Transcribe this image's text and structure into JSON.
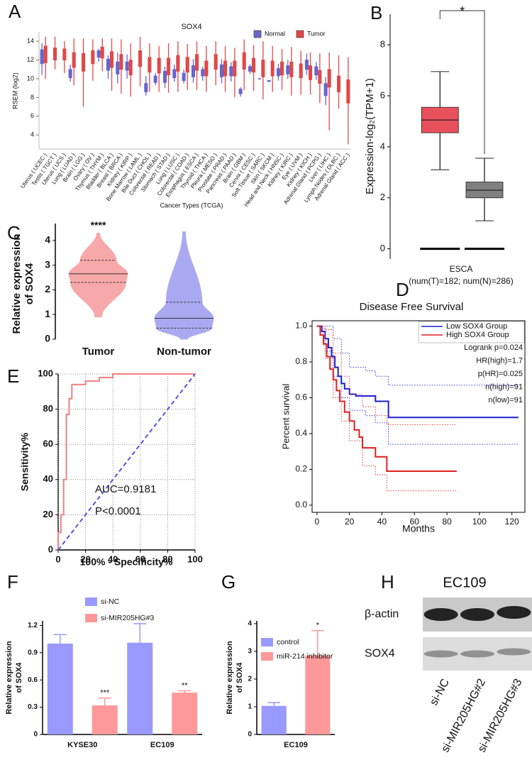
{
  "chart_data": [
    {
      "type": "box",
      "panel": "A",
      "title": "SOX4",
      "ylabel": "RSEM (log2)",
      "xlabel": "Cancer Types (TCGA)",
      "categories": [
        "Uterus ( UCEC )",
        "Testis ( TGCT )",
        "Uterus ( UCS )",
        "Lung ( LUAD )",
        "Brain ( LGG )",
        "Ovary ( OV )",
        "Thymus ( THYM )",
        "Bladder ( BLCA )",
        "Breast ( BRCA )",
        "Kidney ( KIRP )",
        "Bone Marrow ( LAML )",
        "Bile Duct ( CHOL )",
        "Colorectal ( READ )",
        "Stomach ( STAD )",
        "Lung ( LUSC )",
        "Colorectal ( COAD )",
        "Esophagus ( ESCA )",
        "Thyroid ( THCA )",
        "Pleura ( MESO )",
        "Prostate ( PRAD )",
        "Pancreas ( PAAD )",
        "Brain ( GBM )",
        "Cervix ( CESC )",
        "Soft Tissue ( SARC )",
        "Skin ( SKCM )",
        "Head and Neck ( HNSC )",
        "Kidney ( KIRC )",
        "Eye ( UVM )",
        "Kidney ( KICH )",
        "Adrenal Gland ( PCPG )",
        "Liver ( LIHC )",
        "Lymph Nodes ( DLBC )",
        "Adrenal Gland ( ACC )"
      ],
      "series": [
        {
          "name": "Normal",
          "color": "#6666cc",
          "values": [
            [
              10.4,
              11.6,
              12.3,
              13.1,
              13.8
            ],
            null,
            null,
            [
              9.7,
              10.1,
              10.5,
              11,
              11.5
            ],
            null,
            null,
            [
              11.8,
              12.3,
              12.6,
              13,
              13.2
            ],
            [
              10,
              10.9,
              11.5,
              12.1,
              12.5
            ],
            [
              9.5,
              10.5,
              11.2,
              11.8,
              12.8
            ],
            [
              10,
              10.9,
              11.4,
              11.8,
              12.6
            ],
            null,
            [
              8.2,
              8.6,
              9,
              9.5,
              10.3
            ],
            [
              9.3,
              9.6,
              10,
              10.3,
              10.6
            ],
            [
              9,
              9.6,
              10.2,
              10.8,
              11.3
            ],
            [
              9.7,
              10.1,
              10.5,
              11,
              11.5
            ],
            [
              9.5,
              9.8,
              10.2,
              10.6,
              11
            ],
            [
              9.6,
              10.2,
              10.8,
              11.4,
              12.1
            ],
            [
              9.8,
              10.3,
              10.7,
              11,
              11.3
            ],
            null,
            [
              9.5,
              10.2,
              10.9,
              11.5,
              12.1
            ],
            [
              9.7,
              10.3,
              10.8,
              11.3,
              11.8
            ],
            [
              8.1,
              8.4,
              8.6,
              8.9,
              9.1
            ],
            [
              10.5,
              10.8,
              11,
              11.3,
              11.5
            ],
            [
              9.9,
              10,
              10,
              10,
              10.1
            ],
            [
              9.7,
              9.7,
              9.8,
              9.8,
              9.8
            ],
            [
              9.8,
              10.3,
              10.7,
              11.1,
              11.6
            ],
            [
              10,
              10.5,
              11,
              11.4,
              12
            ],
            null,
            [
              10.4,
              11,
              11.6,
              12,
              12.7
            ],
            [
              9.9,
              10.4,
              10.8,
              11.3,
              11.8
            ],
            [
              7.2,
              8.2,
              8.8,
              9.5,
              10.2
            ],
            null,
            null
          ]
        },
        {
          "name": "Tumor",
          "color": "#e04848",
          "values": [
            [
              10,
              11.7,
              12.6,
              13.5,
              14.5
            ],
            [
              11,
              12,
              12.7,
              13.3,
              14.5
            ],
            [
              10.6,
              12,
              12.6,
              13.2,
              14
            ],
            [
              9.3,
              11.2,
              12,
              12.8,
              14.3
            ],
            [
              7,
              10.8,
              11.8,
              12.7,
              14.3
            ],
            [
              9.8,
              11.6,
              12.3,
              13,
              14.2
            ],
            [
              10.8,
              12.2,
              12.8,
              13.4,
              14.3
            ],
            [
              8.7,
              11.2,
              12,
              12.9,
              14.3
            ],
            [
              8.4,
              11,
              11.8,
              12.6,
              14.2
            ],
            [
              8.1,
              10.4,
              11.2,
              12,
              13.8
            ],
            [
              9.2,
              11.3,
              12.2,
              13,
              14.5
            ],
            [
              8.6,
              10.7,
              11.5,
              12.3,
              13.8
            ],
            [
              8.6,
              10.6,
              11.4,
              12.2,
              13.5
            ],
            [
              8.5,
              10.4,
              11.3,
              12.2,
              13.8
            ],
            [
              8.6,
              10.8,
              11.6,
              12.5,
              14
            ],
            [
              8.8,
              10.7,
              11.5,
              12.3,
              13.7
            ],
            [
              8.8,
              10.9,
              11.8,
              12.6,
              14
            ],
            [
              8.6,
              10.3,
              11.1,
              11.9,
              13.5
            ],
            [
              9.3,
              11,
              11.8,
              12.6,
              14
            ],
            [
              8.6,
              10.3,
              11.1,
              11.9,
              13.5
            ],
            [
              8,
              10.3,
              11.1,
              11.9,
              13.3
            ],
            [
              8.8,
              11,
              11.9,
              12.8,
              14.2
            ],
            [
              8.7,
              10.7,
              11.4,
              12.2,
              13.6
            ],
            [
              7.8,
              10.2,
              11.1,
              12,
              14
            ],
            [
              8.6,
              10.3,
              11.1,
              11.9,
              13.5
            ],
            [
              8.8,
              10.4,
              11.1,
              11.8,
              13.2
            ],
            [
              8.2,
              10.2,
              11,
              11.8,
              13.4
            ],
            [
              8.3,
              10.1,
              10.9,
              11.6,
              13
            ],
            [
              8.3,
              9.9,
              10.6,
              11.4,
              12.8
            ],
            [
              7.4,
              9.5,
              10.2,
              10.9,
              12.7
            ],
            [
              4.5,
              9.1,
              10.1,
              11,
              12.8
            ],
            [
              6.8,
              8.6,
              9.4,
              10.3,
              12.5
            ],
            [
              3,
              7.4,
              8.7,
              9.9,
              12.3
            ]
          ]
        }
      ],
      "ylim": [
        2.5,
        15
      ],
      "yticks": [
        4,
        6,
        8,
        10,
        12,
        14
      ],
      "legend": "upper right"
    },
    {
      "type": "box",
      "panel": "B",
      "ylabel": "Expression-log₂(TPM+1)",
      "xlabel": "ESCA",
      "subtitle": "(num(T)=182; num(N)=286)",
      "significance": "*",
      "series": [
        {
          "color": "#e8505b",
          "values": [
            3.1,
            4.55,
            5.05,
            5.55,
            6.95
          ]
        },
        {
          "color": "#808080",
          "values": [
            1.1,
            2.0,
            2.3,
            2.62,
            3.55
          ]
        }
      ],
      "ylim": [
        -0.4,
        9.2
      ],
      "yticks": [
        0,
        2,
        4,
        6,
        8
      ]
    },
    {
      "type": "violin",
      "panel": "C",
      "ylabel": [
        "Relative expression",
        "of SOX4"
      ],
      "categories": [
        "Tumor",
        "Non-tumor"
      ],
      "values": [
        [
          0.9,
          2.3,
          2.65,
          3.2,
          4.3
        ],
        [
          0,
          0.45,
          0.85,
          1.5,
          4.35
        ]
      ],
      "colors": [
        "#f7a8a8",
        "#a9a9f2"
      ],
      "significance": "****",
      "ylim": [
        0,
        4.4
      ],
      "yticks": [
        0,
        1,
        2,
        3,
        4
      ]
    },
    {
      "type": "line",
      "panel": "D",
      "step": true,
      "title": "Disease Free Survival",
      "xlabel": "Months",
      "ylabel": "Percent survival",
      "annotations": [
        "Logrank p=0.024",
        "HR(high)=1.7",
        "p(HR)=0.025",
        "n(high)=91",
        "n(low)=91"
      ],
      "series": [
        {
          "name": "Low SOX4 Group",
          "color": "#1f1fd0",
          "x": [
            0,
            3,
            5,
            7,
            9,
            11,
            13,
            15,
            17,
            20,
            24,
            28,
            32,
            36,
            44,
            124
          ],
          "y": [
            1,
            0.97,
            0.93,
            0.88,
            0.83,
            0.77,
            0.72,
            0.68,
            0.65,
            0.62,
            0.61,
            0.61,
            0.61,
            0.58,
            0.49,
            0.49
          ]
        },
        {
          "name": "High SOX4 Group",
          "color": "#e01f1f",
          "x": [
            0,
            2,
            4,
            6,
            8,
            10,
            12,
            14,
            17,
            20,
            23,
            26,
            28,
            33,
            36,
            43,
            86
          ],
          "y": [
            1,
            0.95,
            0.9,
            0.83,
            0.76,
            0.7,
            0.64,
            0.58,
            0.52,
            0.47,
            0.42,
            0.38,
            0.32,
            0.32,
            0.27,
            0.19,
            0.19
          ]
        },
        {
          "color": "#1f1fd0",
          "dash": true,
          "x": [
            0,
            5,
            10,
            15,
            20,
            30,
            36,
            44,
            124
          ],
          "y": [
            1,
            1,
            0.93,
            0.85,
            0.77,
            0.75,
            0.72,
            0.67,
            0.67
          ]
        },
        {
          "color": "#1f1fd0",
          "dash": true,
          "x": [
            0,
            5,
            10,
            15,
            20,
            30,
            36,
            44,
            124
          ],
          "y": [
            1,
            0.86,
            0.72,
            0.6,
            0.53,
            0.5,
            0.46,
            0.34,
            0.34
          ]
        },
        {
          "color": "#e01f1f",
          "dash": true,
          "x": [
            0,
            5,
            10,
            15,
            20,
            28,
            36,
            43,
            86
          ],
          "y": [
            1,
            0.98,
            0.85,
            0.72,
            0.62,
            0.55,
            0.5,
            0.45,
            0.45
          ]
        },
        {
          "color": "#e01f1f",
          "dash": true,
          "x": [
            0,
            5,
            10,
            15,
            20,
            28,
            36,
            43,
            86
          ],
          "y": [
            1,
            0.82,
            0.6,
            0.47,
            0.36,
            0.22,
            0.17,
            0.08,
            0.08
          ]
        }
      ],
      "xlim": [
        -3,
        128
      ],
      "xticks": [
        0,
        20,
        40,
        60,
        80,
        100,
        120
      ],
      "ylim": [
        -0.04,
        1.03
      ],
      "yticks": [
        {
          "value": 0,
          "label": "0.0"
        },
        0.2,
        0.4,
        0.6,
        0.8,
        {
          "value": 1,
          "label": "1.0"
        }
      ],
      "legend": "upper right"
    },
    {
      "type": "line",
      "panel": "E",
      "xlabel": "100% - Specificity%",
      "ylabel": "Sensitivity%",
      "annotations": [
        "AUC=0.9181",
        "P<0.0001"
      ],
      "series": [
        {
          "color": "#f08080",
          "x": [
            0,
            0,
            2,
            2,
            4,
            4,
            6,
            6,
            8,
            8,
            10,
            10,
            20,
            20,
            30,
            30,
            40,
            40,
            100
          ],
          "y": [
            0,
            10,
            10,
            20,
            20,
            40,
            40,
            77,
            77,
            86,
            86,
            94,
            94,
            96,
            96,
            98,
            98,
            100,
            100
          ]
        },
        {
          "color": "#5555e0",
          "dash": true,
          "x": [
            0,
            100
          ],
          "y": [
            0,
            100
          ]
        }
      ],
      "xlim": [
        0,
        100
      ],
      "xticks": [
        0,
        20,
        40,
        60,
        80,
        100
      ],
      "ylim": [
        0,
        100
      ],
      "yticks": [
        0,
        20,
        40,
        60,
        80,
        100
      ],
      "grid": true
    },
    {
      "type": "bar",
      "panel": "F",
      "ylabel": [
        "Relative expression",
        "of SOX4"
      ],
      "categories": [
        "KYSE30",
        "EC109"
      ],
      "series": [
        {
          "name": "si-NC",
          "color": "#9999ff",
          "values": [
            1.0,
            1.01
          ],
          "errors": [
            0.1,
            0.21
          ]
        },
        {
          "name": "si-MIR205HG#3",
          "color": "#ff9999",
          "values": [
            0.32,
            0.46
          ],
          "errors": [
            0.08,
            0.02
          ],
          "significance": [
            "***",
            "**"
          ]
        }
      ],
      "ylim": [
        0,
        1.25
      ],
      "yticks": [
        0,
        0.3,
        0.6,
        0.9,
        1.2
      ]
    },
    {
      "type": "bar",
      "panel": "G",
      "ylabel": [
        "Relative expression",
        "of SOX4"
      ],
      "categories": [
        "EC109"
      ],
      "series": [
        {
          "name": "control",
          "color": "#9999ff",
          "values": [
            1.03
          ],
          "errors": [
            0.12
          ]
        },
        {
          "name": "miR-214 inhibitor",
          "color": "#ff9999",
          "values": [
            2.85
          ],
          "errors": [
            0.9
          ],
          "significance": [
            "*"
          ]
        }
      ],
      "ylim": [
        0,
        4.1
      ],
      "yticks": [
        0,
        1,
        2,
        3,
        4
      ]
    },
    {
      "type": "blot",
      "panel": "H",
      "title": "EC109",
      "rows": [
        "β-actin",
        "SOX4"
      ],
      "lanes": [
        "si-NC",
        "si-MIR205HG#2",
        "si-MIR205HG#3"
      ]
    }
  ]
}
